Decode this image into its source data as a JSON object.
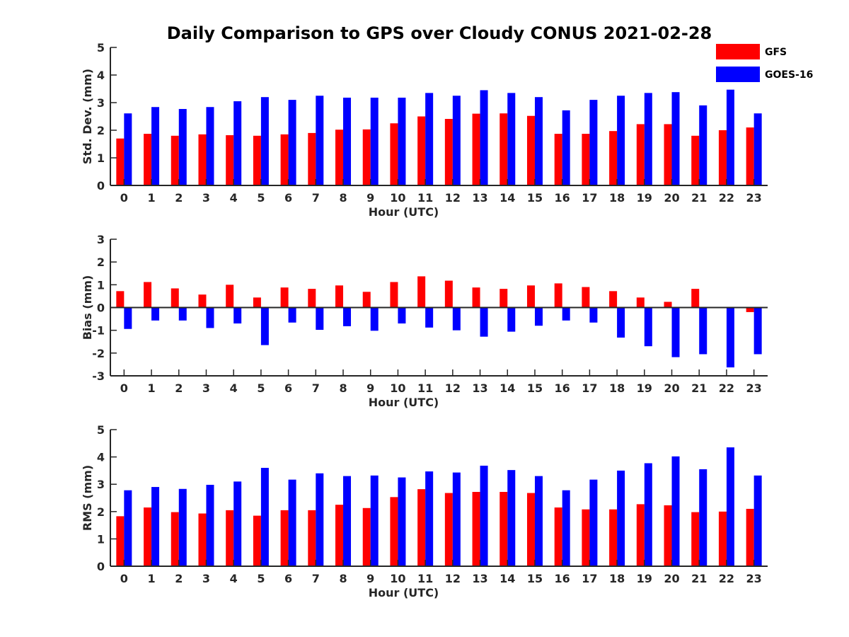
{
  "figure_title": "Daily Comparison to GPS over Cloudy CONUS 2021-02-28",
  "legend": [
    {
      "label": "GFS",
      "color": "#ff0000"
    },
    {
      "label": "GOES-16",
      "color": "#0000ff"
    }
  ],
  "chart_data": [
    {
      "type": "bar",
      "xlabel": "Hour (UTC)",
      "ylabel": "Std. Dev. (mm)",
      "ylim": [
        0,
        5
      ],
      "yticks": [
        0,
        1,
        2,
        3,
        4,
        5
      ],
      "categories": [
        "0",
        "1",
        "2",
        "3",
        "4",
        "5",
        "6",
        "7",
        "8",
        "9",
        "10",
        "11",
        "12",
        "13",
        "14",
        "15",
        "16",
        "17",
        "18",
        "19",
        "20",
        "21",
        "22",
        "23"
      ],
      "series": [
        {
          "name": "GFS",
          "color": "#ff0000",
          "values": [
            1.7,
            1.87,
            1.8,
            1.85,
            1.82,
            1.8,
            1.85,
            1.9,
            2.02,
            2.03,
            2.25,
            2.5,
            2.41,
            2.6,
            2.61,
            2.52,
            1.87,
            1.87,
            1.97,
            2.22,
            2.22,
            1.8,
            2.0,
            2.1
          ]
        },
        {
          "name": "GOES-16",
          "color": "#0000ff",
          "values": [
            2.61,
            2.84,
            2.77,
            2.84,
            3.05,
            3.2,
            3.1,
            3.25,
            3.18,
            3.18,
            3.18,
            3.35,
            3.25,
            3.45,
            3.35,
            3.2,
            2.72,
            3.1,
            3.25,
            3.35,
            3.38,
            2.9,
            3.47,
            2.61
          ]
        }
      ]
    },
    {
      "type": "bar",
      "xlabel": "Hour (UTC)",
      "ylabel": "Bias (mm)",
      "ylim": [
        -3,
        3
      ],
      "yticks": [
        -3,
        -2,
        -1,
        0,
        1,
        2,
        3
      ],
      "categories": [
        "0",
        "1",
        "2",
        "3",
        "4",
        "5",
        "6",
        "7",
        "8",
        "9",
        "10",
        "11",
        "12",
        "13",
        "14",
        "15",
        "16",
        "17",
        "18",
        "19",
        "20",
        "21",
        "22",
        "23"
      ],
      "series": [
        {
          "name": "GFS",
          "color": "#ff0000",
          "values": [
            0.72,
            1.12,
            0.84,
            0.57,
            1.0,
            0.44,
            0.88,
            0.82,
            0.97,
            0.69,
            1.12,
            1.37,
            1.18,
            0.88,
            0.82,
            0.97,
            1.06,
            0.9,
            0.72,
            0.44,
            0.25,
            0.82,
            0.0,
            -0.2
          ]
        },
        {
          "name": "GOES-16",
          "color": "#0000ff",
          "values": [
            -0.94,
            -0.57,
            -0.57,
            -0.9,
            -0.7,
            -1.65,
            -0.66,
            -0.98,
            -0.82,
            -1.02,
            -0.7,
            -0.88,
            -1.0,
            -1.28,
            -1.06,
            -0.8,
            -0.57,
            -0.66,
            -1.32,
            -1.7,
            -2.18,
            -2.05,
            -2.63,
            -2.05
          ]
        }
      ]
    },
    {
      "type": "bar",
      "xlabel": "Hour (UTC)",
      "ylabel": "RMS (mm)",
      "ylim": [
        0,
        5
      ],
      "yticks": [
        0,
        1,
        2,
        3,
        4,
        5
      ],
      "categories": [
        "0",
        "1",
        "2",
        "3",
        "4",
        "5",
        "6",
        "7",
        "8",
        "9",
        "10",
        "11",
        "12",
        "13",
        "14",
        "15",
        "16",
        "17",
        "18",
        "19",
        "20",
        "21",
        "22",
        "23"
      ],
      "series": [
        {
          "name": "GFS",
          "color": "#ff0000",
          "values": [
            1.83,
            2.15,
            1.98,
            1.93,
            2.05,
            1.85,
            2.05,
            2.05,
            2.25,
            2.13,
            2.53,
            2.82,
            2.68,
            2.72,
            2.72,
            2.68,
            2.15,
            2.08,
            2.08,
            2.27,
            2.23,
            1.98,
            2.0,
            2.1
          ]
        },
        {
          "name": "GOES-16",
          "color": "#0000ff",
          "values": [
            2.78,
            2.9,
            2.83,
            2.98,
            3.1,
            3.6,
            3.17,
            3.4,
            3.3,
            3.32,
            3.25,
            3.47,
            3.43,
            3.68,
            3.52,
            3.3,
            2.78,
            3.17,
            3.5,
            3.77,
            4.02,
            3.55,
            4.35,
            3.32
          ]
        }
      ]
    }
  ]
}
